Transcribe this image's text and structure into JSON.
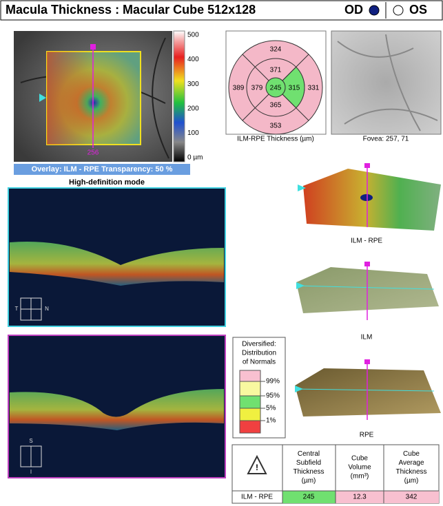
{
  "header": {
    "title": "Macula Thickness : Macular Cube 512x128",
    "od": "OD",
    "os": "OS"
  },
  "thickness_map": {
    "scale_labels": [
      "500",
      "400",
      "300",
      "200",
      "100",
      "0 µm"
    ],
    "position_label": "256",
    "overlay": "Overlay: ILM - RPE  Transparency: 50 %"
  },
  "scan_mode": "High-definition mode",
  "etdrs": {
    "values": [
      324,
      371,
      389,
      379,
      245,
      315,
      331,
      365,
      353
    ],
    "caption": "ILM-RPE Thickness (µm)"
  },
  "fundus": {
    "caption": "Fovea: 257, 71"
  },
  "b_scans": [
    {
      "labels": [
        "T",
        "N"
      ]
    },
    {
      "labels": [
        "S",
        "I"
      ]
    }
  ],
  "surfaces": [
    "ILM - RPE",
    "ILM",
    "RPE"
  ],
  "normals_legend": {
    "title": [
      "Diversified:",
      "Distribution",
      "of Normals"
    ],
    "levels": [
      "99%",
      "95%",
      "5%",
      "1%"
    ]
  },
  "table": {
    "columns": [
      [
        "Central",
        "Subfield",
        "Thickness",
        "(µm)"
      ],
      [
        "Cube",
        "Volume",
        "(mm³)"
      ],
      [
        "Cube",
        "Average",
        "Thickness",
        "(µm)"
      ]
    ],
    "rows": [
      [
        "ILM - RPE",
        245,
        12.3,
        342
      ]
    ]
  }
}
